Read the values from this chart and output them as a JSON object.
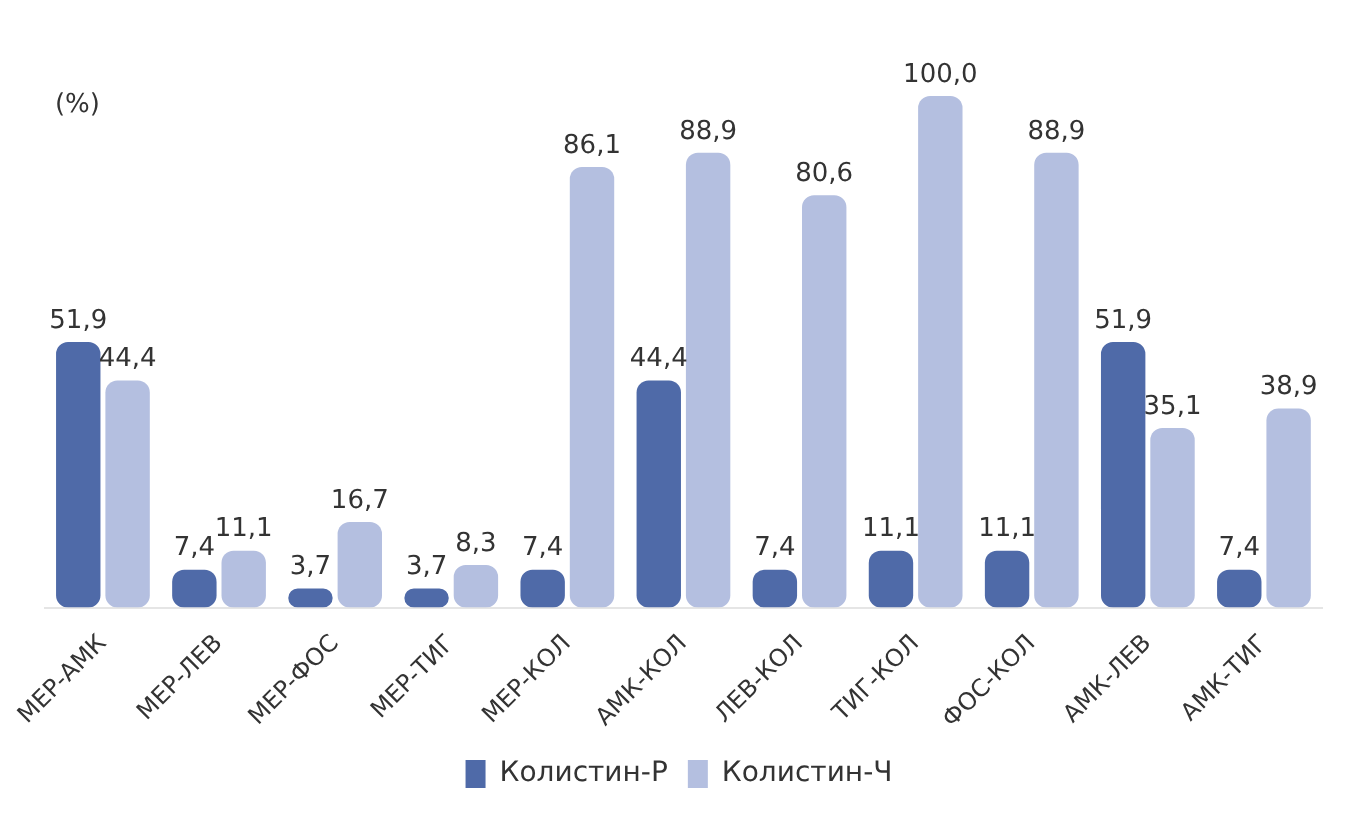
{
  "chart_data": {
    "type": "bar",
    "ylabel": "(%)",
    "categories": [
      "МЕР-АМК",
      "МЕР-ЛЕВ",
      "МЕР-ФОС",
      "МЕР-ТИГ",
      "МЕР-КОЛ",
      "АМК-КОЛ",
      "ЛЕВ-КОЛ",
      "ТИГ-КОЛ",
      "ФОС-КОЛ",
      "АМК-ЛЕВ",
      "АМК-ТИГ"
    ],
    "series": [
      {
        "name": "Колистин-Р",
        "color": "#4f6aa8",
        "values": [
          51.9,
          7.4,
          3.7,
          3.7,
          7.4,
          44.4,
          7.4,
          11.1,
          11.1,
          51.9,
          7.4
        ],
        "value_labels": [
          "51,9",
          "7,4",
          "3,7",
          "3,7",
          "7,4",
          "44,4",
          "7,4",
          "11,1",
          "11,1",
          "51,9",
          "7,4"
        ]
      },
      {
        "name": "Колистин-Ч",
        "color": "#b4bfe0",
        "values": [
          44.4,
          11.1,
          16.7,
          8.3,
          86.1,
          88.9,
          80.6,
          100.0,
          88.9,
          35.1,
          38.9
        ],
        "value_labels": [
          "44,4",
          "11,1",
          "16,7",
          "8,3",
          "86,1",
          "88,9",
          "80,6",
          "100,0",
          "88,9",
          "35,1",
          "38,9"
        ]
      }
    ],
    "grid": false,
    "legend": "bottom"
  }
}
